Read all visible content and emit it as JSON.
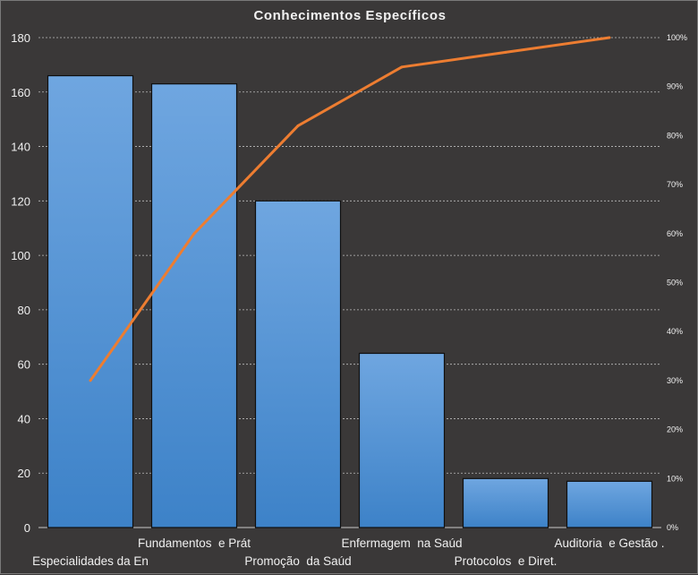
{
  "chart_data": {
    "type": "bar",
    "title": "Conhecimentos Específicos",
    "categories": [
      "Especialidades da En",
      "Fundamentos  e Prát",
      "Promoção  da Saúd",
      "Enfermagem  na Saúd",
      "Protocolos  e Diret.",
      "Auditoria  e Gestão ."
    ],
    "series": [
      {
        "type": "bar",
        "values": [
          166,
          163,
          120,
          64,
          18,
          17
        ]
      },
      {
        "type": "line",
        "axis": "right",
        "values": [
          30,
          60,
          82,
          94,
          97,
          100
        ]
      }
    ],
    "ylim": [
      0,
      180
    ],
    "yticks": [
      0,
      20,
      40,
      60,
      80,
      100,
      120,
      140,
      160,
      180
    ],
    "y2lim": [
      0,
      100
    ],
    "y2ticks": [
      "0%",
      "10%",
      "20%",
      "30%",
      "40%",
      "50%",
      "60%",
      "70%",
      "80%",
      "90%",
      "100%"
    ],
    "grid": "horizontal-dashed",
    "colors": {
      "bar_top": "#6fa6e0",
      "bar_bottom": "#3d82c8",
      "line": "#ed7d31",
      "background": "#3a3838"
    }
  }
}
